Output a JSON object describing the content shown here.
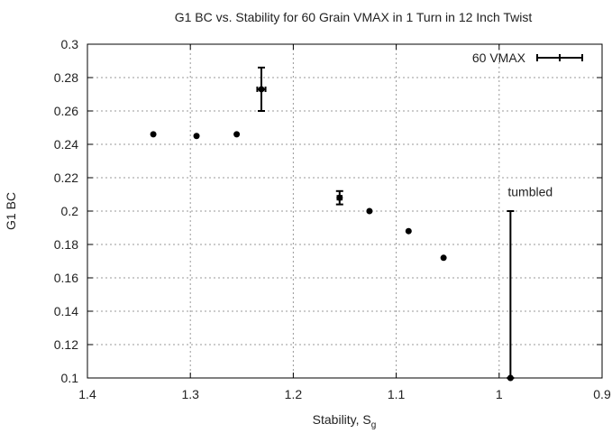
{
  "chart_data": {
    "type": "scatter",
    "title": "G1 BC vs. Stability for 60 Grain VMAX in 1 Turn in 12 Inch Twist",
    "xlabel": "Stability, S",
    "xlabel_subscript": "g",
    "ylabel": "G1 BC",
    "xlim": [
      1.4,
      0.9
    ],
    "ylim": [
      0.1,
      0.3
    ],
    "x_reversed": true,
    "x_ticks": [
      1.4,
      1.3,
      1.2,
      1.1,
      1.0,
      0.9
    ],
    "x_tick_labels": [
      "1.4",
      "1.3",
      "1.2",
      "1.1",
      "1",
      "0.9"
    ],
    "y_ticks": [
      0.1,
      0.12,
      0.14,
      0.16,
      0.18,
      0.2,
      0.22,
      0.24,
      0.26,
      0.28,
      0.3
    ],
    "y_tick_labels": [
      "0.1",
      "0.12",
      "0.14",
      "0.16",
      "0.18",
      "0.2",
      "0.22",
      "0.24",
      "0.26",
      "0.28",
      "0.3"
    ],
    "grid": true,
    "legend_position": "top-right",
    "series": [
      {
        "name": "60 VMAX",
        "color": "#000000",
        "marker": "filled-circle-with-errorbars",
        "points": [
          {
            "x": 1.336,
            "y": 0.246
          },
          {
            "x": 1.294,
            "y": 0.245
          },
          {
            "x": 1.255,
            "y": 0.246
          },
          {
            "x": 1.231,
            "y": 0.273,
            "yerr_low": 0.26,
            "yerr_high": 0.286,
            "xerr_low": 1.235,
            "xerr_high": 1.227
          },
          {
            "x": 1.155,
            "y": 0.208,
            "yerr_low": 0.204,
            "yerr_high": 0.212,
            "xerr_low": 1.157,
            "xerr_high": 1.153
          },
          {
            "x": 1.126,
            "y": 0.2
          },
          {
            "x": 1.088,
            "y": 0.188
          },
          {
            "x": 1.054,
            "y": 0.172
          },
          {
            "x": 0.989,
            "y": 0.1,
            "yerr_low": 0.1,
            "yerr_high": 0.2
          }
        ]
      }
    ],
    "annotations": [
      {
        "text": "tumbled",
        "x": 0.989,
        "y": 0.209
      }
    ]
  }
}
